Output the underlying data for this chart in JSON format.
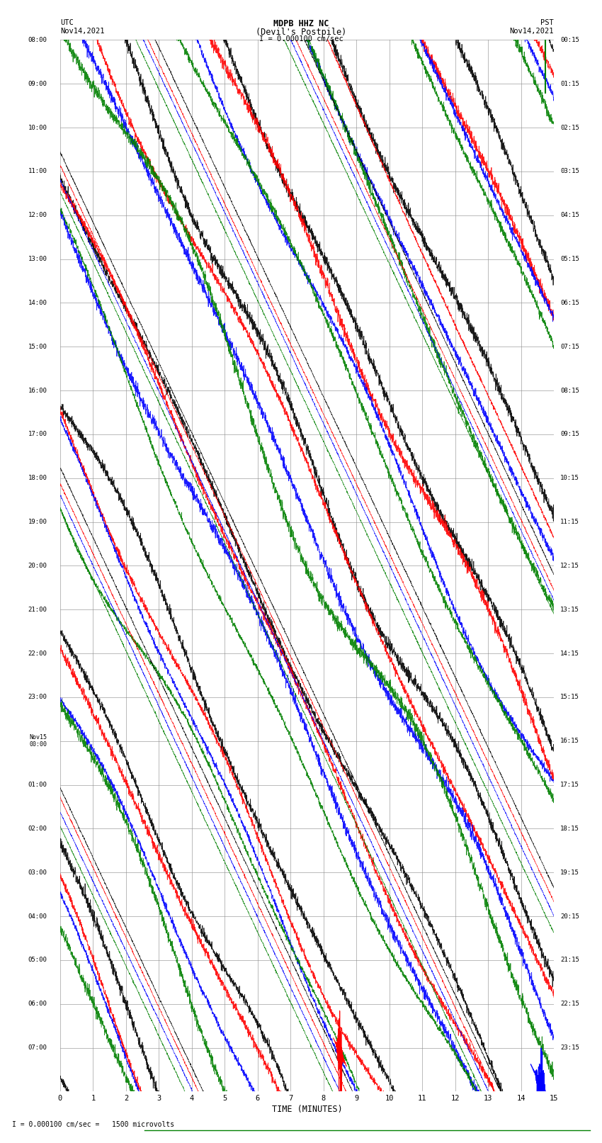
{
  "title_line1": "MDPB HHZ NC",
  "title_line2": "(Devil's Postpile)",
  "scale_text": "I = 0.000100 cm/sec",
  "left_label_line1": "UTC",
  "left_label_line2": "Nov14,2021",
  "right_label_line1": "PST",
  "right_label_line2": "Nov14,2021",
  "xlabel": "TIME (MINUTES)",
  "footer_text": "I = 0.000100 cm/sec =   1500 microvolts",
  "xmin": 0,
  "xmax": 15,
  "num_time_rows": 24,
  "background_color": "#ffffff",
  "grid_color": "#888888",
  "colors": [
    "black",
    "red",
    "blue",
    "green"
  ],
  "utc_times": [
    "08:00",
    "09:00",
    "10:00",
    "11:00",
    "12:00",
    "13:00",
    "14:00",
    "15:00",
    "16:00",
    "17:00",
    "18:00",
    "19:00",
    "20:00",
    "21:00",
    "22:00",
    "23:00",
    "Nov15\n00:00",
    "01:00",
    "02:00",
    "03:00",
    "04:00",
    "05:00",
    "06:00",
    "07:00"
  ],
  "pst_times": [
    "00:15",
    "01:15",
    "02:15",
    "03:15",
    "04:15",
    "05:15",
    "06:15",
    "07:15",
    "08:15",
    "09:15",
    "10:15",
    "11:15",
    "12:15",
    "13:15",
    "14:15",
    "15:15",
    "16:15",
    "17:15",
    "18:15",
    "19:15",
    "20:15",
    "21:15",
    "22:15",
    "23:15"
  ]
}
